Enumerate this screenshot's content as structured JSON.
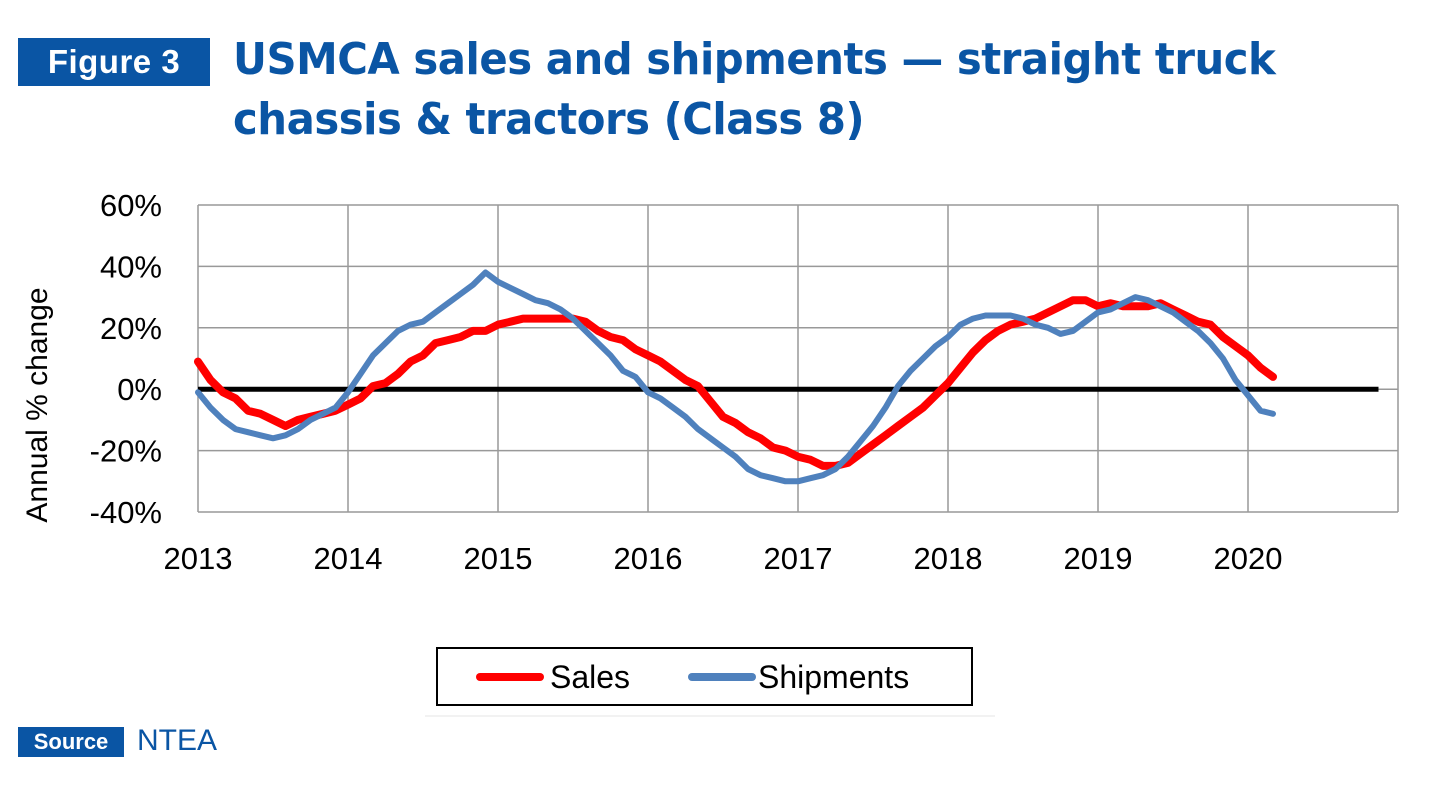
{
  "figure_label": "Figure 3",
  "title": "USMCA sales and shipments — straight truck chassis & tractors (Class 8)",
  "source_label": "Source",
  "source_value": "NTEA",
  "colors": {
    "brand": "#0a55a4",
    "sales": "#ff0000",
    "shipments": "#4f81bd",
    "zero_line": "#000000",
    "grid": "#999999"
  },
  "chart_data": {
    "type": "line",
    "title": "USMCA sales and shipments — straight truck chassis & tractors (Class 8)",
    "xlabel": "",
    "ylabel": "Annual % change",
    "xlim": [
      2013,
      2021
    ],
    "ylim": [
      -40,
      60
    ],
    "x_ticks": [
      "2013",
      "2014",
      "2015",
      "2016",
      "2017",
      "2018",
      "2019",
      "2020"
    ],
    "y_ticks": [
      "60%",
      "40%",
      "20%",
      "0%",
      "-20%",
      "-40%"
    ],
    "grid": true,
    "legend": "bottom-center",
    "series": [
      {
        "name": "Sales",
        "color": "#ff0000",
        "x": [
          2013.0,
          2013.083,
          2013.167,
          2013.25,
          2013.333,
          2013.417,
          2013.5,
          2013.583,
          2013.667,
          2013.75,
          2013.833,
          2013.917,
          2014.0,
          2014.083,
          2014.167,
          2014.25,
          2014.333,
          2014.417,
          2014.5,
          2014.583,
          2014.667,
          2014.75,
          2014.833,
          2014.917,
          2015.0,
          2015.083,
          2015.167,
          2015.25,
          2015.333,
          2015.417,
          2015.5,
          2015.583,
          2015.667,
          2015.75,
          2015.833,
          2015.917,
          2016.0,
          2016.083,
          2016.167,
          2016.25,
          2016.333,
          2016.417,
          2016.5,
          2016.583,
          2016.667,
          2016.75,
          2016.833,
          2016.917,
          2017.0,
          2017.083,
          2017.167,
          2017.25,
          2017.333,
          2017.417,
          2017.5,
          2017.583,
          2017.667,
          2017.75,
          2017.833,
          2017.917,
          2018.0,
          2018.083,
          2018.167,
          2018.25,
          2018.333,
          2018.417,
          2018.5,
          2018.583,
          2018.667,
          2018.75,
          2018.833,
          2018.917,
          2019.0,
          2019.083,
          2019.167,
          2019.25,
          2019.333,
          2019.417,
          2019.5,
          2019.583,
          2019.667,
          2019.75,
          2019.833,
          2019.917,
          2020.0,
          2020.083,
          2020.167
        ],
        "values": [
          9,
          3,
          -1,
          -3,
          -7,
          -8,
          -10,
          -12,
          -10,
          -9,
          -8,
          -7,
          -5,
          -3,
          1,
          2,
          5,
          9,
          11,
          15,
          16,
          17,
          19,
          19,
          21,
          22,
          23,
          23,
          23,
          23,
          23,
          22,
          19,
          17,
          16,
          13,
          11,
          9,
          6,
          3,
          1,
          -4,
          -9,
          -11,
          -14,
          -16,
          -19,
          -20,
          -22,
          -23,
          -25,
          -25,
          -24,
          -21,
          -18,
          -15,
          -12,
          -9,
          -6,
          -2,
          2,
          7,
          12,
          16,
          19,
          21,
          22,
          23,
          25,
          27,
          29,
          29,
          27,
          28,
          27,
          27,
          27,
          28,
          26,
          24,
          22,
          21,
          17,
          14,
          11,
          7,
          4
        ]
      },
      {
        "name": "Shipments",
        "color": "#4f81bd",
        "x": [
          2013.0,
          2013.083,
          2013.167,
          2013.25,
          2013.333,
          2013.417,
          2013.5,
          2013.583,
          2013.667,
          2013.75,
          2013.833,
          2013.917,
          2014.0,
          2014.083,
          2014.167,
          2014.25,
          2014.333,
          2014.417,
          2014.5,
          2014.583,
          2014.667,
          2014.75,
          2014.833,
          2014.917,
          2015.0,
          2015.083,
          2015.167,
          2015.25,
          2015.333,
          2015.417,
          2015.5,
          2015.583,
          2015.667,
          2015.75,
          2015.833,
          2015.917,
          2016.0,
          2016.083,
          2016.167,
          2016.25,
          2016.333,
          2016.417,
          2016.5,
          2016.583,
          2016.667,
          2016.75,
          2016.833,
          2016.917,
          2017.0,
          2017.083,
          2017.167,
          2017.25,
          2017.333,
          2017.417,
          2017.5,
          2017.583,
          2017.667,
          2017.75,
          2017.833,
          2017.917,
          2018.0,
          2018.083,
          2018.167,
          2018.25,
          2018.333,
          2018.417,
          2018.5,
          2018.583,
          2018.667,
          2018.75,
          2018.833,
          2018.917,
          2019.0,
          2019.083,
          2019.167,
          2019.25,
          2019.333,
          2019.417,
          2019.5,
          2019.583,
          2019.667,
          2019.75,
          2019.833,
          2019.917,
          2020.0,
          2020.083,
          2020.167
        ],
        "values": [
          -1,
          -6,
          -10,
          -13,
          -14,
          -15,
          -16,
          -15,
          -13,
          -10,
          -8,
          -6,
          -1,
          5,
          11,
          15,
          19,
          21,
          22,
          25,
          28,
          31,
          34,
          38,
          35,
          33,
          31,
          29,
          28,
          26,
          23,
          19,
          15,
          11,
          6,
          4,
          -1,
          -3,
          -6,
          -9,
          -13,
          -16,
          -19,
          -22,
          -26,
          -28,
          -29,
          -30,
          -30,
          -29,
          -28,
          -26,
          -22,
          -17,
          -12,
          -6,
          1,
          6,
          10,
          14,
          17,
          21,
          23,
          24,
          24,
          24,
          23,
          21,
          20,
          18,
          19,
          22,
          25,
          26,
          28,
          30,
          29,
          27,
          25,
          22,
          19,
          15,
          10,
          3,
          -2,
          -7,
          -8
        ]
      }
    ]
  }
}
